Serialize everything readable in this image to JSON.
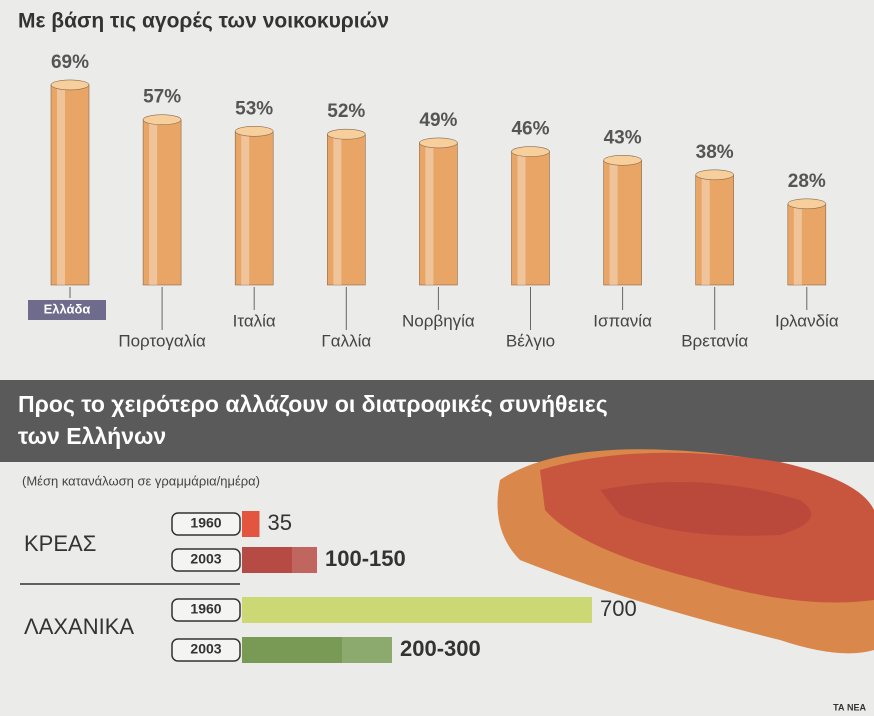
{
  "chart_data": [
    {
      "type": "bar",
      "title": "Με βάση τις αγορές των νοικοκυριών",
      "categories": [
        "Ελλάδα",
        "Πορτογαλία",
        "Ιταλία",
        "Γαλλία",
        "Νορβηγία",
        "Βέλγιο",
        "Ισπανία",
        "Βρετανία",
        "Ιρλανδία"
      ],
      "values": [
        69,
        57,
        53,
        52,
        49,
        46,
        43,
        38,
        28
      ],
      "value_labels": [
        "69%",
        "57%",
        "53%",
        "52%",
        "49%",
        "46%",
        "43%",
        "38%",
        "28%"
      ],
      "color": "#e9a566",
      "highlight_category": 0,
      "highlight_color": "#6e6b8c"
    },
    {
      "type": "hbar",
      "title": "Προς το χειρότερο αλλάζουν οι διατροφικές συνήθειες των Ελλήνων",
      "subtitle": "(Μέση κατανάλωση σε γραμμάρια/ημέρα)",
      "categories": [
        "ΚΡΕΑΣ",
        "ΛΑΧΑΝΙΚΑ"
      ],
      "series": [
        {
          "name": "1960",
          "colors": [
            "#e2553f",
            "#cbd873"
          ],
          "values": [
            35,
            700
          ]
        },
        {
          "name": "2003",
          "colors": [
            "#b54b44",
            "#789a55"
          ],
          "values": [
            [
              100,
              150
            ],
            [
              200,
              300
            ]
          ],
          "value_labels": [
            "100-150",
            "200-300"
          ]
        }
      ]
    }
  ],
  "source": "ΤΑ ΝΕΑ"
}
